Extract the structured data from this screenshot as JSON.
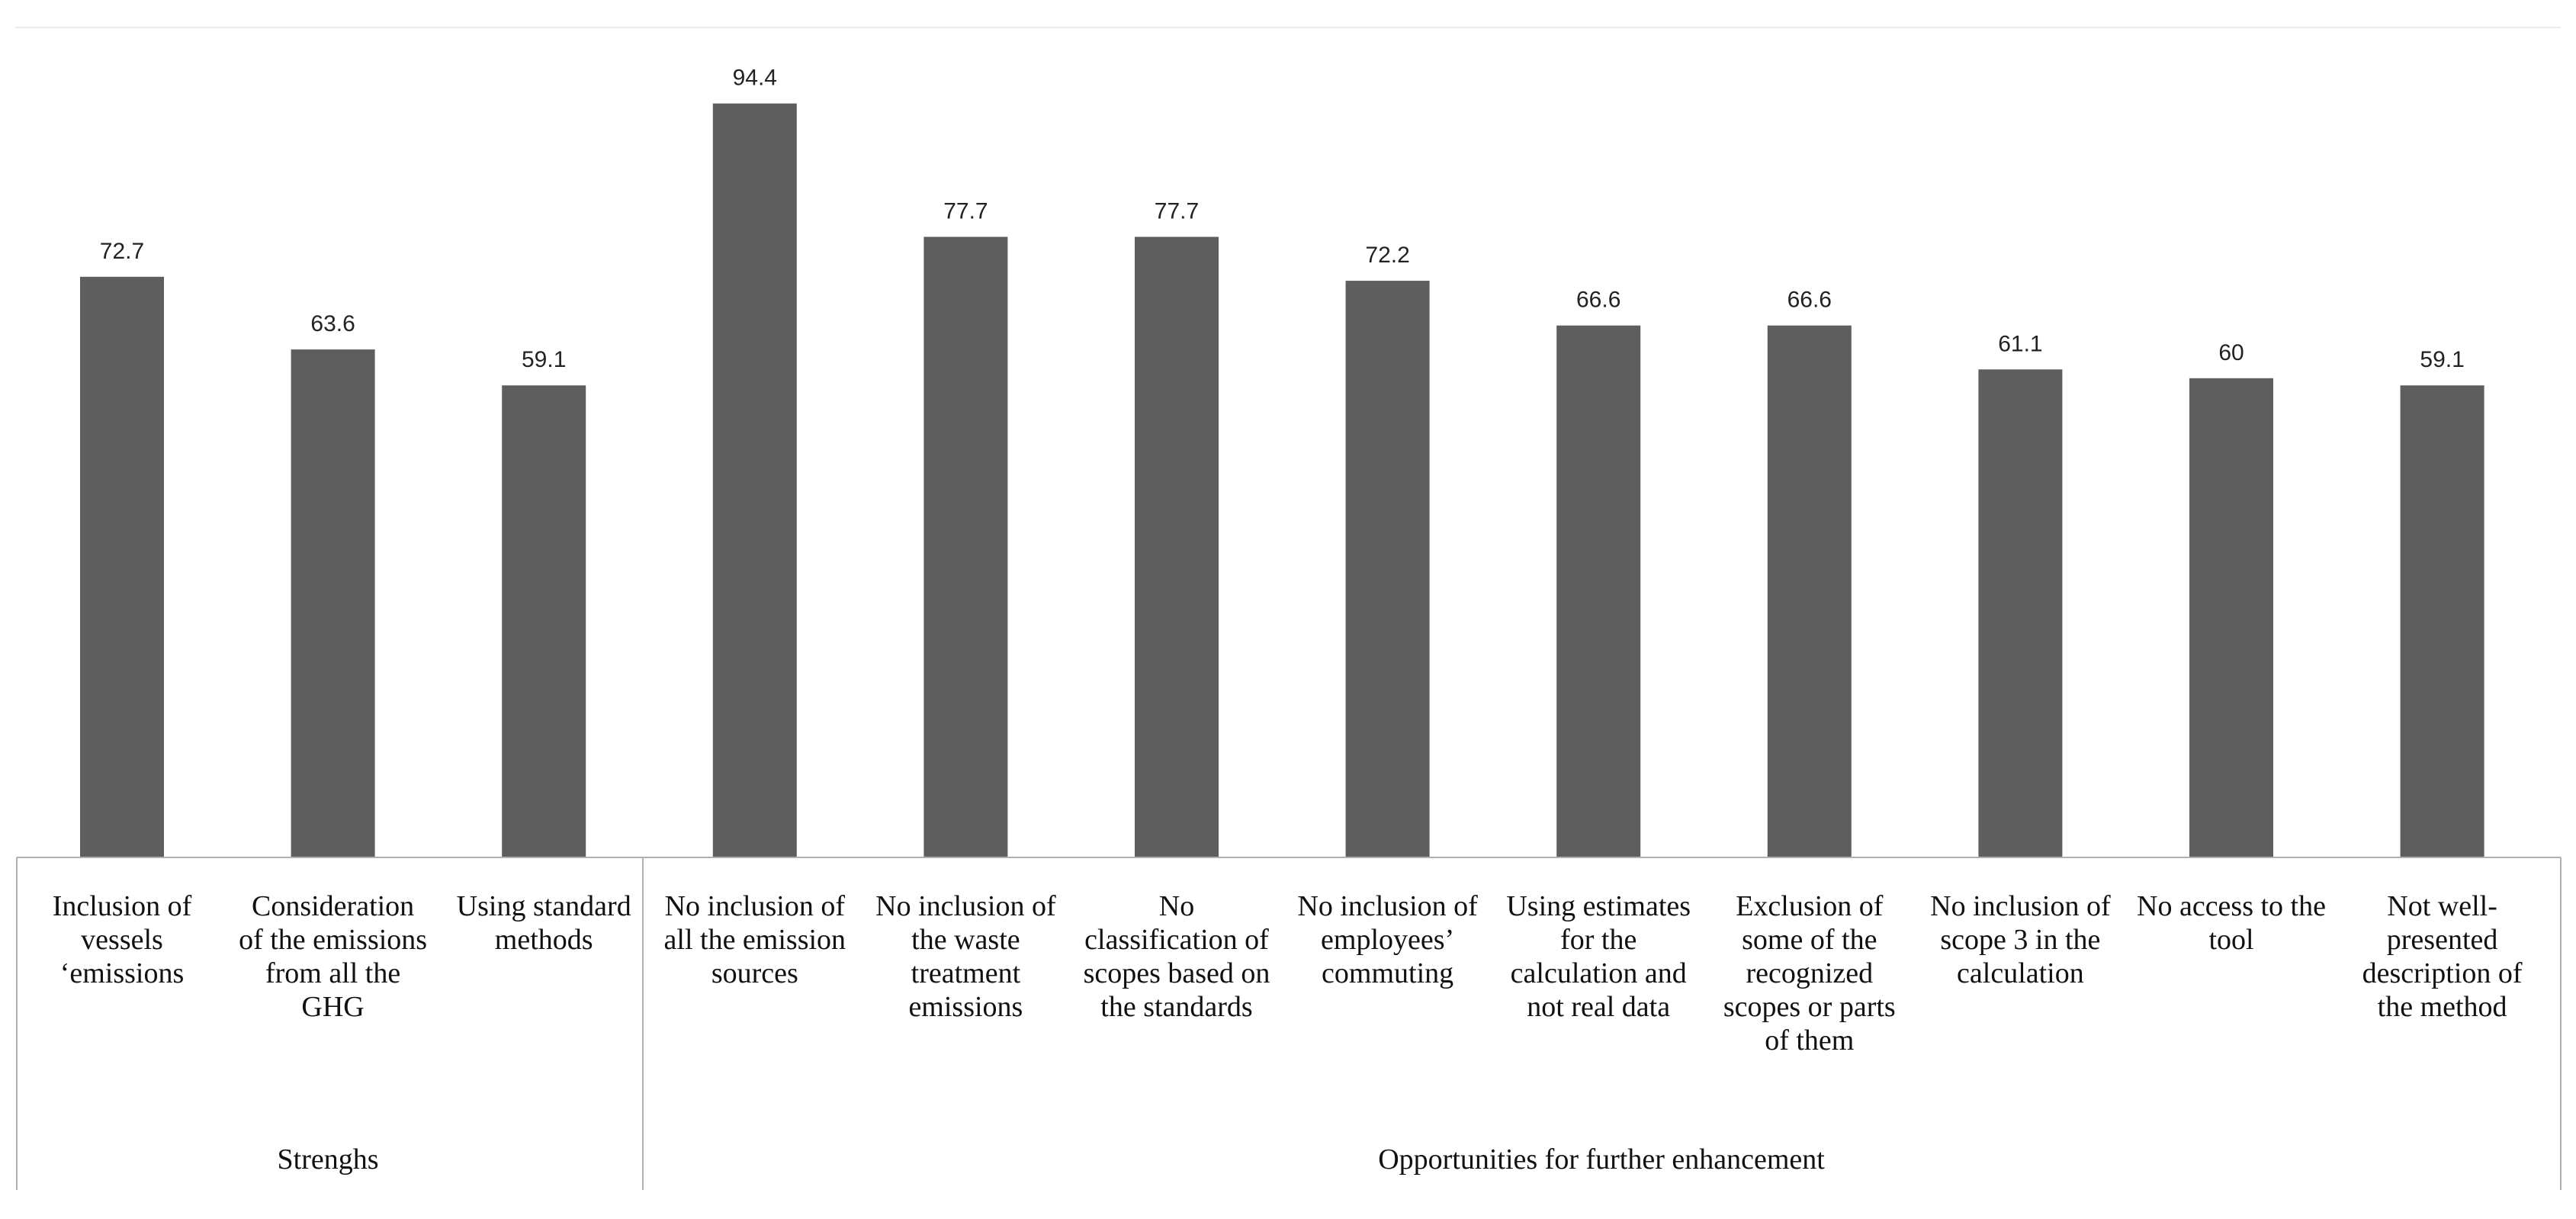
{
  "chart_data": {
    "type": "bar",
    "title": "",
    "xlabel": "",
    "ylabel": "",
    "ylim": [
      0,
      100
    ],
    "grid": false,
    "legend": "none",
    "bar_color": "#5e5e5e",
    "categories": [
      [
        "Inclusion of",
        "vessels",
        "‘emissions"
      ],
      [
        "Consideration",
        "of the emissions",
        "from all the",
        "GHG"
      ],
      [
        "Using standard",
        "methods"
      ],
      [
        "No inclusion of",
        "all the emission",
        "sources"
      ],
      [
        "No inclusion of",
        "the waste",
        "treatment",
        "emissions"
      ],
      [
        "No",
        "classification of",
        "scopes based on",
        "the standards"
      ],
      [
        "No inclusion of",
        "employees’",
        "commuting"
      ],
      [
        "Using estimates",
        "for the",
        "calculation and",
        "not real data"
      ],
      [
        "Exclusion of",
        "some of the",
        "recognized",
        "scopes or parts",
        "of them"
      ],
      [
        "No inclusion of",
        "scope 3 in the",
        "calculation"
      ],
      [
        "No access to the",
        "tool"
      ],
      [
        "Not well-",
        "presented",
        "description of",
        "the method"
      ]
    ],
    "values": [
      72.7,
      63.6,
      59.1,
      94.4,
      77.7,
      77.7,
      72.2,
      66.6,
      66.6,
      61.1,
      60,
      59.1
    ],
    "value_labels": [
      "72.7",
      "63.6",
      "59.1",
      "94.4",
      "77.7",
      "77.7",
      "72.2",
      "66.6",
      "66.6",
      "61.1",
      "60",
      "59.1"
    ],
    "groups": [
      {
        "label": "Strenghs",
        "start": 0,
        "end": 2
      },
      {
        "label": "Opportunities for further enhancement",
        "start": 3,
        "end": 11
      }
    ]
  }
}
